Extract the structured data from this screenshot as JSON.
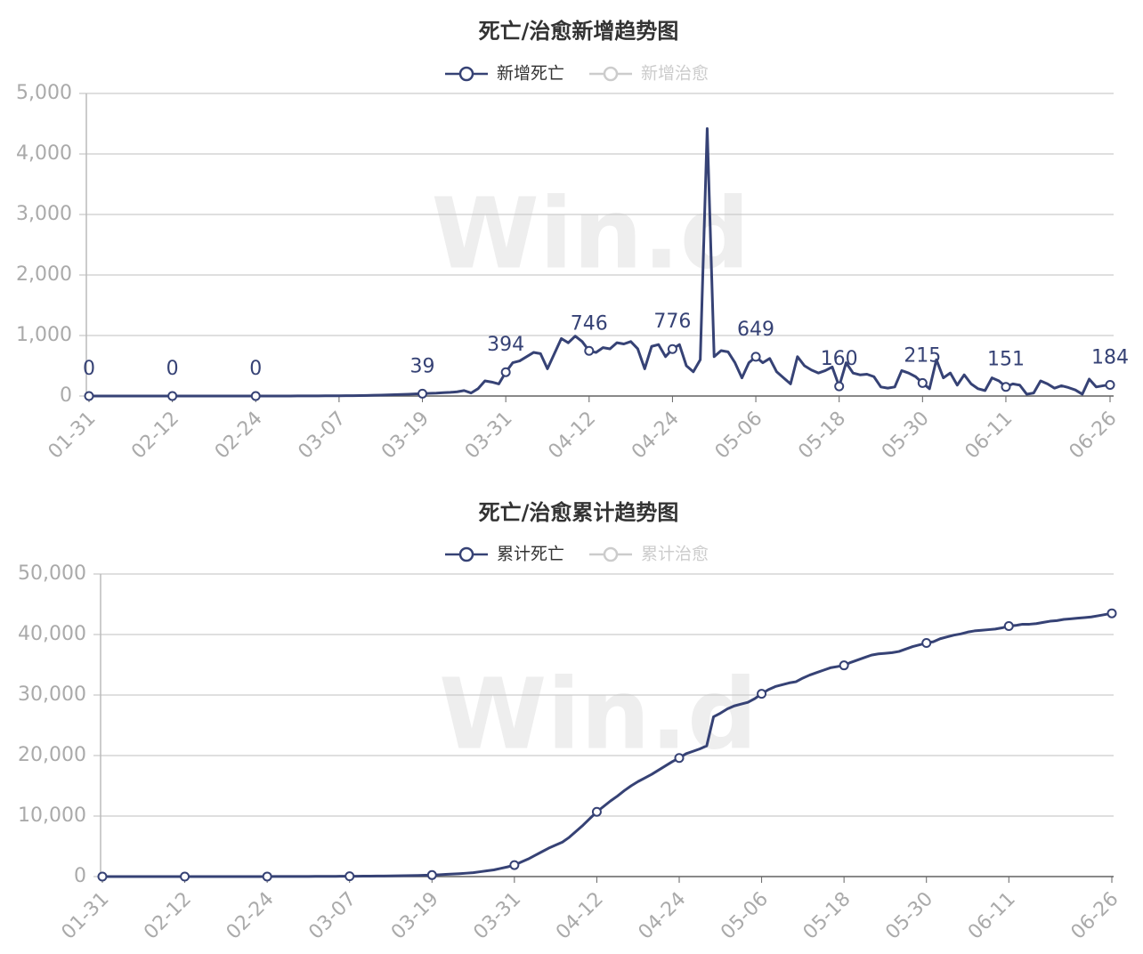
{
  "chart_data": [
    {
      "type": "line",
      "title": "死亡/治愈新增趋势图",
      "watermark": "Win.d",
      "categories": [
        "01-31",
        null,
        null,
        null,
        null,
        null,
        null,
        null,
        null,
        null,
        null,
        null,
        "02-12",
        null,
        null,
        null,
        null,
        null,
        null,
        null,
        null,
        null,
        null,
        null,
        "02-24",
        null,
        null,
        null,
        null,
        null,
        null,
        null,
        null,
        null,
        null,
        null,
        "03-07",
        null,
        null,
        null,
        null,
        null,
        null,
        null,
        null,
        null,
        null,
        null,
        "03-19",
        null,
        null,
        null,
        null,
        null,
        null,
        null,
        null,
        null,
        null,
        null,
        "03-31",
        null,
        null,
        null,
        null,
        null,
        null,
        null,
        null,
        null,
        null,
        null,
        "04-12",
        null,
        null,
        null,
        null,
        null,
        null,
        null,
        null,
        null,
        null,
        null,
        "04-24",
        null,
        null,
        null,
        null,
        null,
        null,
        null,
        null,
        null,
        null,
        null,
        "05-06",
        null,
        null,
        null,
        null,
        null,
        null,
        null,
        null,
        null,
        null,
        null,
        "05-18",
        null,
        null,
        null,
        null,
        null,
        null,
        null,
        null,
        null,
        null,
        null,
        "05-30",
        null,
        null,
        null,
        null,
        null,
        null,
        null,
        null,
        null,
        null,
        null,
        "06-11",
        null,
        null,
        null,
        null,
        null,
        null,
        null,
        null,
        null,
        null,
        null,
        null,
        null,
        null,
        "06-26"
      ],
      "series": [
        {
          "name": "新增死亡",
          "color": "#364275",
          "values": [
            0,
            0,
            0,
            0,
            0,
            0,
            0,
            0,
            0,
            0,
            0,
            0,
            0,
            0,
            0,
            0,
            0,
            0,
            0,
            0,
            0,
            0,
            0,
            0,
            0,
            0,
            0,
            0,
            0,
            0,
            1,
            1,
            2,
            2,
            3,
            3,
            4,
            5,
            6,
            8,
            10,
            12,
            15,
            18,
            22,
            26,
            30,
            35,
            39,
            45,
            48,
            55,
            60,
            70,
            90,
            50,
            120,
            250,
            230,
            200,
            394,
            550,
            580,
            650,
            720,
            700,
            450,
            700,
            950,
            880,
            990,
            900,
            746,
            720,
            800,
            780,
            880,
            860,
            900,
            780,
            450,
            820,
            850,
            650,
            776,
            850,
            500,
            400,
            600,
            4420,
            650,
            750,
            730,
            550,
            300,
            550,
            649,
            550,
            620,
            400,
            300,
            200,
            650,
            500,
            430,
            380,
            420,
            480,
            160,
            550,
            380,
            350,
            360,
            320,
            150,
            130,
            150,
            420,
            380,
            320,
            215,
            120,
            600,
            300,
            380,
            180,
            350,
            200,
            120,
            90,
            300,
            250,
            151,
            200,
            180,
            30,
            50,
            250,
            200,
            130,
            170,
            140,
            100,
            30,
            280,
            150,
            170,
            184
          ],
          "value_labels": [
            "0",
            null,
            null,
            null,
            null,
            null,
            null,
            null,
            null,
            null,
            null,
            null,
            "0",
            null,
            null,
            null,
            null,
            null,
            null,
            null,
            null,
            null,
            null,
            null,
            "0",
            null,
            null,
            null,
            null,
            null,
            null,
            null,
            null,
            null,
            null,
            null,
            null,
            null,
            null,
            null,
            null,
            null,
            null,
            null,
            null,
            null,
            null,
            null,
            "39",
            null,
            null,
            null,
            null,
            null,
            null,
            null,
            null,
            null,
            null,
            null,
            "394",
            null,
            null,
            null,
            null,
            null,
            null,
            null,
            null,
            null,
            null,
            null,
            "746",
            null,
            null,
            null,
            null,
            null,
            null,
            null,
            null,
            null,
            null,
            null,
            "776",
            null,
            null,
            null,
            null,
            null,
            null,
            null,
            null,
            null,
            null,
            null,
            "649",
            null,
            null,
            null,
            null,
            null,
            null,
            null,
            null,
            null,
            null,
            null,
            "160",
            null,
            null,
            null,
            null,
            null,
            null,
            null,
            null,
            null,
            null,
            null,
            "215",
            null,
            null,
            null,
            null,
            null,
            null,
            null,
            null,
            null,
            null,
            null,
            "151",
            null,
            null,
            null,
            null,
            null,
            null,
            null,
            null,
            null,
            null,
            null,
            null,
            null,
            null,
            "184"
          ]
        },
        {
          "name": "新增治愈",
          "color": "#cccccc",
          "visible": false
        }
      ],
      "ylim": [
        0,
        5000
      ],
      "yticks": [
        0,
        {
          "value": 1000,
          "label": "1,000"
        },
        {
          "value": 2000,
          "label": "2,000"
        },
        {
          "value": 3000,
          "label": "3,000"
        },
        {
          "value": 4000,
          "label": "4,000"
        },
        {
          "value": 5000,
          "label": "5,000"
        }
      ],
      "grid": true
    },
    {
      "type": "line",
      "title": "死亡/治愈累计趋势图",
      "watermark": "Win.d",
      "categories": [
        "01-31",
        null,
        null,
        null,
        null,
        null,
        null,
        null,
        null,
        null,
        null,
        null,
        "02-12",
        null,
        null,
        null,
        null,
        null,
        null,
        null,
        null,
        null,
        null,
        null,
        "02-24",
        null,
        null,
        null,
        null,
        null,
        null,
        null,
        null,
        null,
        null,
        null,
        "03-07",
        null,
        null,
        null,
        null,
        null,
        null,
        null,
        null,
        null,
        null,
        null,
        "03-19",
        null,
        null,
        null,
        null,
        null,
        null,
        null,
        null,
        null,
        null,
        null,
        "03-31",
        null,
        null,
        null,
        null,
        null,
        null,
        null,
        null,
        null,
        null,
        null,
        "04-12",
        null,
        null,
        null,
        null,
        null,
        null,
        null,
        null,
        null,
        null,
        null,
        "04-24",
        null,
        null,
        null,
        null,
        null,
        null,
        null,
        null,
        null,
        null,
        null,
        "05-06",
        null,
        null,
        null,
        null,
        null,
        null,
        null,
        null,
        null,
        null,
        null,
        "05-18",
        null,
        null,
        null,
        null,
        null,
        null,
        null,
        null,
        null,
        null,
        null,
        "05-30",
        null,
        null,
        null,
        null,
        null,
        null,
        null,
        null,
        null,
        null,
        null,
        "06-11",
        null,
        null,
        null,
        null,
        null,
        null,
        null,
        null,
        null,
        null,
        null,
        null,
        null,
        null,
        "06-26"
      ],
      "series": [
        {
          "name": "累计死亡",
          "color": "#364275",
          "values": [
            0,
            0,
            0,
            0,
            0,
            0,
            0,
            0,
            0,
            0,
            0,
            0,
            0,
            0,
            0,
            0,
            0,
            0,
            0,
            0,
            0,
            2,
            4,
            6,
            8,
            10,
            12,
            15,
            18,
            22,
            26,
            30,
            35,
            40,
            45,
            50,
            55,
            60,
            70,
            80,
            90,
            100,
            115,
            130,
            150,
            170,
            190,
            220,
            250,
            300,
            360,
            420,
            480,
            560,
            650,
            800,
            950,
            1100,
            1350,
            1600,
            1900,
            2400,
            2900,
            3500,
            4100,
            4700,
            5200,
            5700,
            6500,
            7500,
            8500,
            9600,
            10700,
            11600,
            12500,
            13300,
            14200,
            15000,
            15700,
            16300,
            16900,
            17600,
            18300,
            19000,
            19600,
            20300,
            20700,
            21100,
            21600,
            26400,
            27000,
            27700,
            28200,
            28500,
            28800,
            29400,
            30200,
            30900,
            31400,
            31700,
            32000,
            32200,
            32800,
            33300,
            33700,
            34100,
            34500,
            34700,
            34900,
            35400,
            35800,
            36200,
            36600,
            36800,
            36900,
            37000,
            37200,
            37600,
            38000,
            38300,
            38600,
            38800,
            39300,
            39600,
            39900,
            40100,
            40400,
            40600,
            40700,
            40800,
            40900,
            41100,
            41400,
            41500,
            41700,
            41700,
            41800,
            42000,
            42200,
            42300,
            42500,
            42600,
            42700,
            42800,
            42900,
            43100,
            43300,
            43500
          ]
        },
        {
          "name": "累计治愈",
          "color": "#cccccc",
          "visible": false
        }
      ],
      "ylim": [
        0,
        50000
      ],
      "yticks": [
        0,
        {
          "value": 10000,
          "label": "10,000"
        },
        {
          "value": 20000,
          "label": "20,000"
        },
        {
          "value": 30000,
          "label": "30,000"
        },
        {
          "value": 40000,
          "label": "40,000"
        },
        {
          "value": 50000,
          "label": "50,000"
        }
      ],
      "grid": true
    }
  ]
}
